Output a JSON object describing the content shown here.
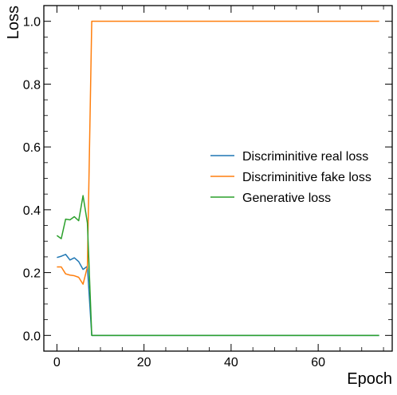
{
  "chart_data": {
    "type": "line",
    "title": "",
    "xlabel": "Epoch",
    "ylabel": "Loss",
    "xlim": [
      -3,
      77
    ],
    "ylim": [
      -0.05,
      1.05
    ],
    "x_ticks": [
      0,
      20,
      40,
      60
    ],
    "x_tick_labels": [
      "0",
      "20",
      "40",
      "60"
    ],
    "x_minor_step": 5,
    "y_ticks": [
      0.0,
      0.2,
      0.4,
      0.6,
      0.8,
      1.0
    ],
    "y_tick_labels": [
      "0.0",
      "0.2",
      "0.4",
      "0.6",
      "0.8",
      "1.0"
    ],
    "y_minor_step": 0.05,
    "grid": false,
    "legend_position": "center-right",
    "series": [
      {
        "name": "Discriminitive real loss",
        "color": "#1f77b4",
        "x": [
          0,
          1,
          2,
          3,
          4,
          5,
          6,
          7,
          8,
          9,
          10,
          11,
          12,
          13,
          14,
          15,
          16,
          17,
          18,
          19,
          20,
          21,
          22,
          23,
          24,
          25,
          26,
          27,
          28,
          29,
          30,
          31,
          32,
          33,
          34,
          35,
          36,
          37,
          38,
          39,
          40,
          41,
          42,
          43,
          44,
          45,
          46,
          47,
          48,
          49,
          50,
          51,
          52,
          53,
          54,
          55,
          56,
          57,
          58,
          59,
          60,
          61,
          62,
          63,
          64,
          65,
          66,
          67,
          68,
          69,
          70,
          71,
          72,
          73,
          74
        ],
        "y": [
          0.248,
          0.252,
          0.258,
          0.24,
          0.247,
          0.235,
          0.21,
          0.22,
          0.0,
          0.0,
          0.0,
          0.0,
          0.0,
          0.0,
          0.0,
          0.0,
          0.0,
          0.0,
          0.0,
          0.0,
          0.0,
          0.0,
          0.0,
          0.0,
          0.0,
          0.0,
          0.0,
          0.0,
          0.0,
          0.0,
          0.0,
          0.0,
          0.0,
          0.0,
          0.0,
          0.0,
          0.0,
          0.0,
          0.0,
          0.0,
          0.0,
          0.0,
          0.0,
          0.0,
          0.0,
          0.0,
          0.0,
          0.0,
          0.0,
          0.0,
          0.0,
          0.0,
          0.0,
          0.0,
          0.0,
          0.0,
          0.0,
          0.0,
          0.0,
          0.0,
          0.0,
          0.0,
          0.0,
          0.0,
          0.0,
          0.0,
          0.0,
          0.0,
          0.0,
          0.0,
          0.0,
          0.0,
          0.0,
          0.0,
          0.0
        ]
      },
      {
        "name": "Discriminitive fake loss",
        "color": "#ff7f0e",
        "x": [
          0,
          1,
          2,
          3,
          4,
          5,
          6,
          7,
          8,
          9,
          10,
          11,
          12,
          13,
          14,
          15,
          16,
          17,
          18,
          19,
          20,
          21,
          22,
          23,
          24,
          25,
          26,
          27,
          28,
          29,
          30,
          31,
          32,
          33,
          34,
          35,
          36,
          37,
          38,
          39,
          40,
          41,
          42,
          43,
          44,
          45,
          46,
          47,
          48,
          49,
          50,
          51,
          52,
          53,
          54,
          55,
          56,
          57,
          58,
          59,
          60,
          61,
          62,
          63,
          64,
          65,
          66,
          67,
          68,
          69,
          70,
          71,
          72,
          73,
          74
        ],
        "y": [
          0.218,
          0.218,
          0.196,
          0.192,
          0.19,
          0.185,
          0.163,
          0.218,
          1.0,
          1.0,
          1.0,
          1.0,
          1.0,
          1.0,
          1.0,
          1.0,
          1.0,
          1.0,
          1.0,
          1.0,
          1.0,
          1.0,
          1.0,
          1.0,
          1.0,
          1.0,
          1.0,
          1.0,
          1.0,
          1.0,
          1.0,
          1.0,
          1.0,
          1.0,
          1.0,
          1.0,
          1.0,
          1.0,
          1.0,
          1.0,
          1.0,
          1.0,
          1.0,
          1.0,
          1.0,
          1.0,
          1.0,
          1.0,
          1.0,
          1.0,
          1.0,
          1.0,
          1.0,
          1.0,
          1.0,
          1.0,
          1.0,
          1.0,
          1.0,
          1.0,
          1.0,
          1.0,
          1.0,
          1.0,
          1.0,
          1.0,
          1.0,
          1.0,
          1.0,
          1.0,
          1.0,
          1.0,
          1.0,
          1.0,
          1.0
        ]
      },
      {
        "name": "Generative loss",
        "color": "#2ca02c",
        "x": [
          0,
          1,
          2,
          3,
          4,
          5,
          6,
          7,
          8,
          9,
          10,
          11,
          12,
          13,
          14,
          15,
          16,
          17,
          18,
          19,
          20,
          21,
          22,
          23,
          24,
          25,
          26,
          27,
          28,
          29,
          30,
          31,
          32,
          33,
          34,
          35,
          36,
          37,
          38,
          39,
          40,
          41,
          42,
          43,
          44,
          45,
          46,
          47,
          48,
          49,
          50,
          51,
          52,
          53,
          54,
          55,
          56,
          57,
          58,
          59,
          60,
          61,
          62,
          63,
          64,
          65,
          66,
          67,
          68,
          69,
          70,
          71,
          72,
          73,
          74
        ],
        "y": [
          0.318,
          0.308,
          0.37,
          0.368,
          0.378,
          0.365,
          0.445,
          0.358,
          0.0,
          0.0,
          0.0,
          0.0,
          0.0,
          0.0,
          0.0,
          0.0,
          0.0,
          0.0,
          0.0,
          0.0,
          0.0,
          0.0,
          0.0,
          0.0,
          0.0,
          0.0,
          0.0,
          0.0,
          0.0,
          0.0,
          0.0,
          0.0,
          0.0,
          0.0,
          0.0,
          0.0,
          0.0,
          0.0,
          0.0,
          0.0,
          0.0,
          0.0,
          0.0,
          0.0,
          0.0,
          0.0,
          0.0,
          0.0,
          0.0,
          0.0,
          0.0,
          0.0,
          0.0,
          0.0,
          0.0,
          0.0,
          0.0,
          0.0,
          0.0,
          0.0,
          0.0,
          0.0,
          0.0,
          0.0,
          0.0,
          0.0,
          0.0,
          0.0,
          0.0,
          0.0,
          0.0,
          0.0,
          0.0,
          0.0,
          0.0
        ]
      }
    ]
  }
}
